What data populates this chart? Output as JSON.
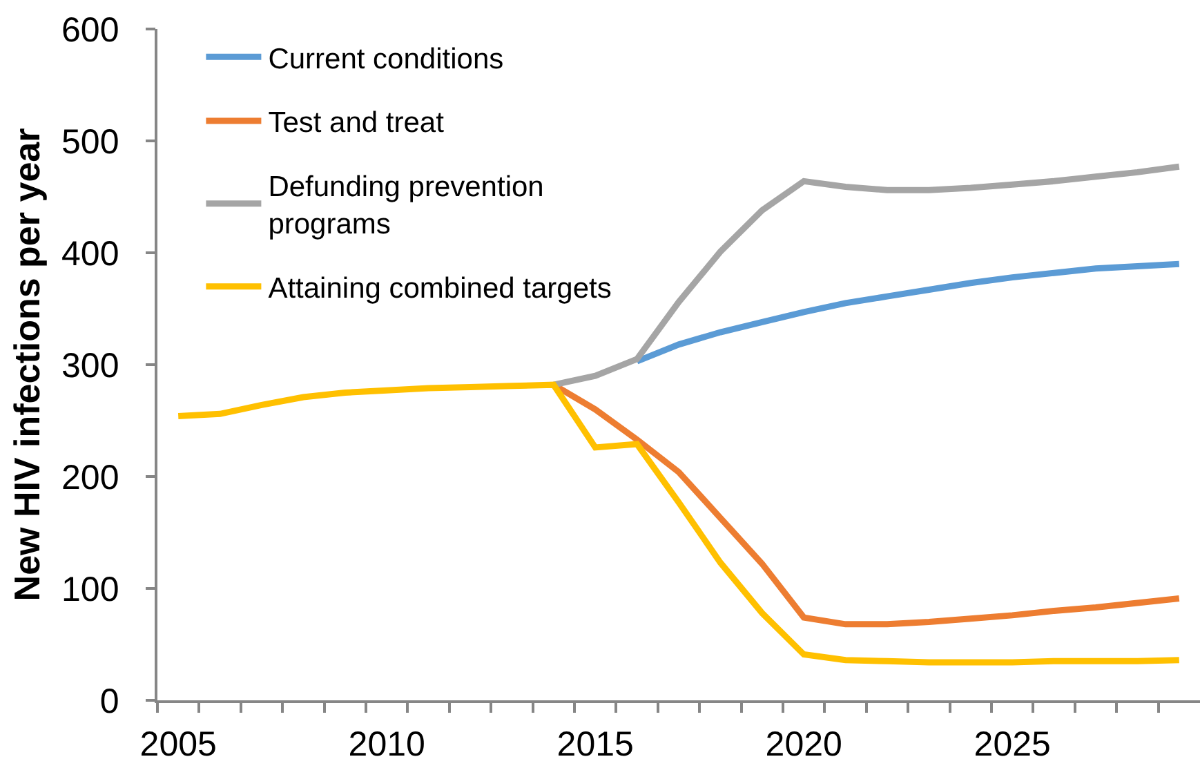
{
  "chart_data": {
    "type": "line",
    "ylabel": "New HIV infections per year",
    "x": [
      2005,
      2006,
      2007,
      2008,
      2009,
      2010,
      2011,
      2012,
      2013,
      2014,
      2015,
      2016,
      2017,
      2018,
      2019,
      2020,
      2021,
      2022,
      2023,
      2024,
      2025,
      2026,
      2027,
      2028,
      2029
    ],
    "xlim": [
      2004.5,
      2029.5
    ],
    "xticks": [
      {
        "value": 2004.5,
        "label": null
      },
      2005,
      {
        "value": 2005.5,
        "label": null
      },
      {
        "value": 2006.5,
        "label": null
      },
      {
        "value": 2007.5,
        "label": null
      },
      {
        "value": 2008.5,
        "label": null
      },
      {
        "value": 2009.5,
        "label": null
      },
      2010,
      {
        "value": 2010.5,
        "label": null
      },
      {
        "value": 2011.5,
        "label": null
      },
      {
        "value": 2012.5,
        "label": null
      },
      {
        "value": 2013.5,
        "label": null
      },
      {
        "value": 2014.5,
        "label": null
      },
      2015,
      {
        "value": 2015.5,
        "label": null
      },
      {
        "value": 2016.5,
        "label": null
      },
      {
        "value": 2017.5,
        "label": null
      },
      {
        "value": 2018.5,
        "label": null
      },
      {
        "value": 2019.5,
        "label": null
      },
      2020,
      {
        "value": 2020.5,
        "label": null
      },
      {
        "value": 2021.5,
        "label": null
      },
      {
        "value": 2022.5,
        "label": null
      },
      {
        "value": 2023.5,
        "label": null
      },
      {
        "value": 2024.5,
        "label": null
      },
      2025,
      {
        "value": 2025.5,
        "label": null
      },
      {
        "value": 2026.5,
        "label": null
      },
      {
        "value": 2027.5,
        "label": null
      },
      {
        "value": 2028.5,
        "label": null
      }
    ],
    "ylim": [
      0,
      600
    ],
    "yticks": [
      0,
      100,
      200,
      300,
      400,
      500,
      600
    ],
    "grid": false,
    "legend": "top left",
    "marker": "none",
    "line_style": "solid",
    "series": [
      {
        "name": "Current conditions",
        "color": "#5b9bd5",
        "values": [
          null,
          null,
          null,
          null,
          null,
          null,
          null,
          null,
          null,
          null,
          null,
          303,
          318,
          329,
          338,
          347,
          355,
          361,
          367,
          373,
          378,
          382,
          386,
          388,
          390
        ]
      },
      {
        "name": "Test and treat",
        "color": "#ed7d31",
        "values": [
          null,
          null,
          null,
          null,
          null,
          null,
          null,
          null,
          null,
          282,
          260,
          233,
          204,
          163,
          122,
          74,
          68,
          68,
          70,
          73,
          76,
          80,
          83,
          87,
          91
        ]
      },
      {
        "name": "Defunding prevention programs",
        "color": "#a5a5a5",
        "values": [
          null,
          null,
          null,
          null,
          null,
          null,
          null,
          null,
          null,
          282,
          290,
          305,
          356,
          401,
          438,
          464,
          459,
          456,
          456,
          458,
          461,
          464,
          468,
          472,
          477
        ]
      },
      {
        "name": "Attaining combined targets",
        "color": "#ffc000",
        "values": [
          254,
          256,
          264,
          271,
          275,
          277,
          279,
          280,
          281,
          282,
          226,
          229,
          177,
          123,
          78,
          41,
          36,
          35,
          34,
          34,
          34,
          35,
          35,
          35,
          36
        ]
      }
    ]
  }
}
